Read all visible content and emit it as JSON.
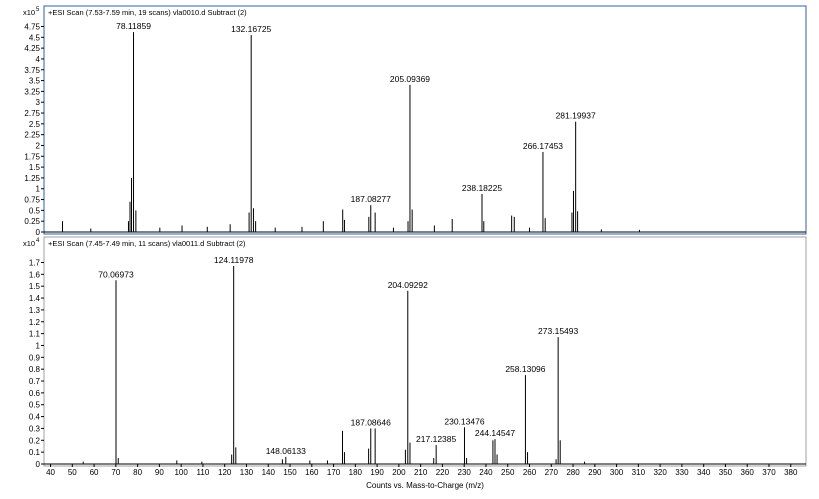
{
  "chart_data": [
    {
      "type": "bar",
      "title": "+ESI Scan (7.53-7.59 min, 19 scans) vla0010.d  Subtract (2)",
      "exponent_base": "x10",
      "exponent_power": "5",
      "ylim": [
        0,
        4.9
      ],
      "yticks": [
        "0",
        "0.25",
        "0.5",
        "0.75",
        "1",
        "1.25",
        "1.5",
        "1.75",
        "2",
        "2.25",
        "2.5",
        "2.75",
        "3",
        "3.25",
        "3.5",
        "3.75",
        "4",
        "4.25",
        "4.5",
        "4.75"
      ],
      "xlim": [
        37,
        387
      ],
      "peaks": [
        {
          "x": 78.11859,
          "y": 4.62,
          "label": "78.11859"
        },
        {
          "x": 132.16725,
          "y": 4.55,
          "label": "132.16725"
        },
        {
          "x": 205.09369,
          "y": 3.4,
          "label": "205.09369"
        },
        {
          "x": 281.19937,
          "y": 2.55,
          "label": "281.19937"
        },
        {
          "x": 266.17453,
          "y": 1.85,
          "label": "266.17453"
        },
        {
          "x": 187.08277,
          "y": 0.62,
          "label": "187.08277"
        },
        {
          "x": 238.18225,
          "y": 0.88,
          "label": "238.18225"
        },
        {
          "x": 45.5,
          "y": 0.25
        },
        {
          "x": 77.2,
          "y": 1.25
        },
        {
          "x": 76.5,
          "y": 0.7
        },
        {
          "x": 79.2,
          "y": 0.5
        },
        {
          "x": 75.8,
          "y": 0.25
        },
        {
          "x": 131.2,
          "y": 0.45
        },
        {
          "x": 133.2,
          "y": 0.55
        },
        {
          "x": 134.2,
          "y": 0.25
        },
        {
          "x": 122.5,
          "y": 0.18
        },
        {
          "x": 100.4,
          "y": 0.15
        },
        {
          "x": 165.3,
          "y": 0.25
        },
        {
          "x": 174.2,
          "y": 0.52
        },
        {
          "x": 175.0,
          "y": 0.28
        },
        {
          "x": 186.2,
          "y": 0.35
        },
        {
          "x": 189.1,
          "y": 0.45
        },
        {
          "x": 204.2,
          "y": 0.25
        },
        {
          "x": 206.1,
          "y": 0.52
        },
        {
          "x": 224.5,
          "y": 0.3
        },
        {
          "x": 239.0,
          "y": 0.25
        },
        {
          "x": 251.8,
          "y": 0.38
        },
        {
          "x": 253.0,
          "y": 0.35
        },
        {
          "x": 267.2,
          "y": 0.32
        },
        {
          "x": 279.5,
          "y": 0.45
        },
        {
          "x": 280.2,
          "y": 0.95
        },
        {
          "x": 282.1,
          "y": 0.48
        },
        {
          "x": 155.5,
          "y": 0.12
        },
        {
          "x": 143.2,
          "y": 0.1
        },
        {
          "x": 112.0,
          "y": 0.12
        },
        {
          "x": 90.2,
          "y": 0.1
        },
        {
          "x": 58.5,
          "y": 0.08
        },
        {
          "x": 216.3,
          "y": 0.15
        },
        {
          "x": 197.5,
          "y": 0.1
        },
        {
          "x": 260.0,
          "y": 0.1
        },
        {
          "x": 293.0,
          "y": 0.06
        },
        {
          "x": 310.5,
          "y": 0.05
        }
      ]
    },
    {
      "type": "bar",
      "title": "+ESI Scan (7.45-7.49 min, 11 scans) vla0011.d  Subtract (2)",
      "exponent_base": "x10",
      "exponent_power": "4",
      "ylim": [
        0,
        1.78
      ],
      "yticks": [
        "0",
        "0.1",
        "0.2",
        "0.3",
        "0.4",
        "0.5",
        "0.6",
        "0.7",
        "0.8",
        "0.9",
        "1",
        "1.1",
        "1.2",
        "1.3",
        "1.4",
        "1.5",
        "1.6",
        "1.7"
      ],
      "xlim": [
        37,
        387
      ],
      "xticks": [
        40,
        50,
        60,
        70,
        80,
        90,
        100,
        110,
        120,
        130,
        140,
        150,
        160,
        170,
        180,
        190,
        200,
        210,
        220,
        230,
        240,
        250,
        260,
        270,
        280,
        290,
        300,
        310,
        320,
        330,
        340,
        350,
        360,
        370,
        380
      ],
      "xlabel": "Counts vs. Mass-to-Charge (m/z)",
      "peaks": [
        {
          "x": 70.06973,
          "y": 1.55,
          "label": "70.06973"
        },
        {
          "x": 124.11978,
          "y": 1.67,
          "label": "124.11978"
        },
        {
          "x": 204.09292,
          "y": 1.46,
          "label": "204.09292"
        },
        {
          "x": 273.15493,
          "y": 1.07,
          "label": "273.15493"
        },
        {
          "x": 258.13096,
          "y": 0.75,
          "label": "258.13096"
        },
        {
          "x": 230.13476,
          "y": 0.31,
          "label": "230.13476"
        },
        {
          "x": 187.08646,
          "y": 0.3,
          "label": "187.08646"
        },
        {
          "x": 244.14547,
          "y": 0.21,
          "label": "244.14547"
        },
        {
          "x": 217.12385,
          "y": 0.16,
          "label": "217.12385"
        },
        {
          "x": 148.06133,
          "y": 0.06,
          "label": "148.06133"
        },
        {
          "x": 71.1,
          "y": 0.05
        },
        {
          "x": 123.2,
          "y": 0.08
        },
        {
          "x": 125.1,
          "y": 0.14
        },
        {
          "x": 174.1,
          "y": 0.28
        },
        {
          "x": 175.0,
          "y": 0.1
        },
        {
          "x": 186.1,
          "y": 0.13
        },
        {
          "x": 189.1,
          "y": 0.3
        },
        {
          "x": 205.1,
          "y": 0.18
        },
        {
          "x": 203.0,
          "y": 0.12
        },
        {
          "x": 216.0,
          "y": 0.05
        },
        {
          "x": 231.1,
          "y": 0.05
        },
        {
          "x": 243.2,
          "y": 0.2
        },
        {
          "x": 245.1,
          "y": 0.08
        },
        {
          "x": 259.1,
          "y": 0.1
        },
        {
          "x": 274.1,
          "y": 0.2
        },
        {
          "x": 272.2,
          "y": 0.04
        },
        {
          "x": 146.5,
          "y": 0.04
        },
        {
          "x": 98.0,
          "y": 0.03
        },
        {
          "x": 109.5,
          "y": 0.02
        },
        {
          "x": 159.1,
          "y": 0.03
        },
        {
          "x": 167.2,
          "y": 0.03
        },
        {
          "x": 55.0,
          "y": 0.02
        },
        {
          "x": 285.3,
          "y": 0.02
        }
      ]
    }
  ]
}
